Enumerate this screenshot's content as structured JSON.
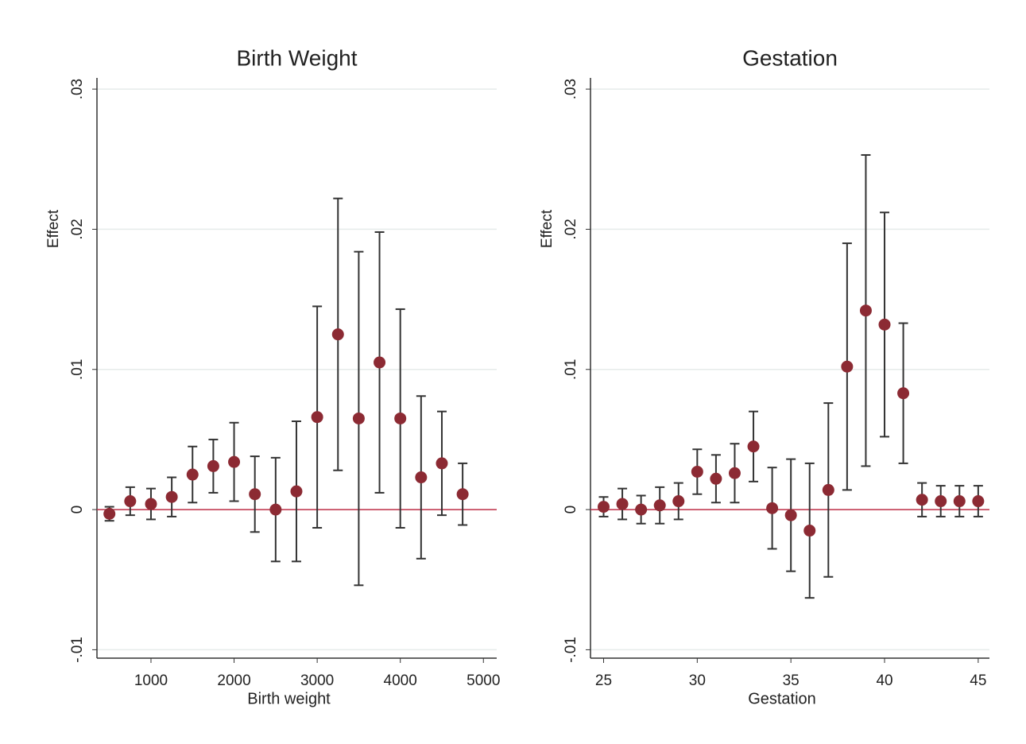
{
  "chart_data": [
    {
      "type": "scatter",
      "title": "Birth Weight",
      "x_label": "Birth weight",
      "y_label": "Effect",
      "x": [
        500,
        750,
        1000,
        1250,
        1500,
        1750,
        2000,
        2250,
        2500,
        2750,
        3000,
        3250,
        3500,
        3750,
        4000,
        4250,
        4500,
        4750
      ],
      "values": [
        -0.0003,
        0.0006,
        0.0004,
        0.0009,
        0.0025,
        0.0031,
        0.0034,
        0.0011,
        0,
        0.0013,
        0.0066,
        0.0125,
        0.0065,
        0.0105,
        0.0065,
        0.0023,
        0.0033,
        0.0011
      ],
      "errors": [
        0.0005,
        0.001,
        0.0011,
        0.0014,
        0.002,
        0.0019,
        0.0028,
        0.0027,
        0.0037,
        0.005,
        0.0079,
        0.0097,
        0.0119,
        0.0093,
        0.0078,
        0.0058,
        0.0037,
        0.0022
      ],
      "color": "#8c2a33",
      "error_color": "#333333",
      "reference_line": 0,
      "reference_color": "#c0304a",
      "xlim": [
        350,
        5160
      ],
      "xticks": [
        1000,
        2000,
        3000,
        4000,
        5000
      ],
      "ylim": [
        -0.0106,
        0.0308
      ],
      "yticks": [
        {
          "value": -0.01,
          "label": "-.01"
        },
        0,
        {
          "value": 0.01,
          "label": ".01"
        },
        {
          "value": 0.02,
          "label": ".02"
        },
        {
          "value": 0.03,
          "label": ".03"
        }
      ],
      "grid": true
    },
    {
      "type": "scatter",
      "title": "Gestation",
      "x_label": "Gestation",
      "y_label": "Effect",
      "x": [
        25,
        26,
        27,
        28,
        29,
        30,
        31,
        32,
        33,
        34,
        35,
        36,
        37,
        38,
        39,
        40,
        41,
        42,
        43,
        44,
        45
      ],
      "values": [
        0.0002,
        0.0004,
        0,
        0.0003,
        0.0006,
        0.0027,
        0.0022,
        0.0026,
        0.0045,
        0.0001,
        -0.0004,
        -0.0015,
        0.0014,
        0.0102,
        0.0142,
        0.0132,
        0.0083,
        0.0007,
        0.0006,
        0.0006,
        0.0006
      ],
      "errors": [
        0.0007,
        0.0011,
        0.001,
        0.0013,
        0.0013,
        0.0016,
        0.0017,
        0.0021,
        0.0025,
        0.0029,
        0.004,
        0.0048,
        0.0062,
        0.0088,
        0.0111,
        0.008,
        0.005,
        0.0012,
        0.0011,
        0.0011,
        0.0011
      ],
      "color": "#8c2a33",
      "error_color": "#333333",
      "reference_line": 0,
      "reference_color": "#c0304a",
      "xlim": [
        24.3,
        45.6
      ],
      "xticks": [
        25,
        30,
        35,
        40,
        45
      ],
      "ylim": [
        -0.0106,
        0.0308
      ],
      "yticks": [
        {
          "value": -0.01,
          "label": "-.01"
        },
        0,
        {
          "value": 0.01,
          "label": ".01"
        },
        {
          "value": 0.02,
          "label": ".02"
        },
        {
          "value": 0.03,
          "label": ".03"
        }
      ],
      "grid": true
    }
  ]
}
